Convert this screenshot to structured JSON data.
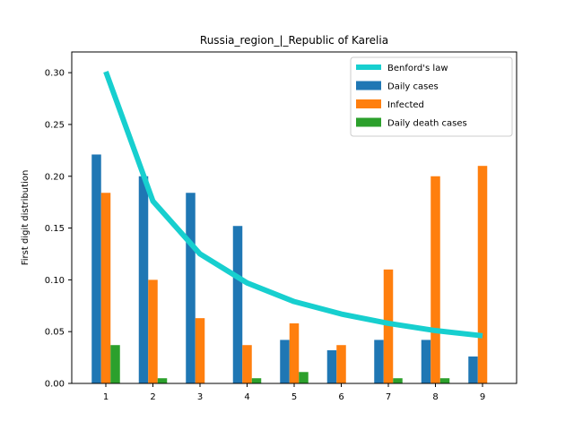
{
  "chart_data": {
    "type": "bar",
    "title": "Russia_region_|_Republic of Karelia",
    "xlabel": "",
    "ylabel": "First digit distribution",
    "ylim": [
      0,
      0.32
    ],
    "x_categories": [
      "1",
      "2",
      "3",
      "4",
      "5",
      "6",
      "7",
      "8",
      "9"
    ],
    "y_ticks": [
      "0.00",
      "0.05",
      "0.10",
      "0.15",
      "0.20",
      "0.25",
      "0.30"
    ],
    "legend_position": "upper right",
    "line_series": {
      "name": "Benford's law",
      "color": "#17cfcf",
      "values": [
        0.301,
        0.176,
        0.125,
        0.097,
        0.079,
        0.067,
        0.058,
        0.051,
        0.046
      ]
    },
    "series": [
      {
        "name": "Daily cases",
        "color": "#1f77b4",
        "values": [
          0.221,
          0.2,
          0.184,
          0.152,
          0.042,
          0.032,
          0.042,
          0.042,
          0.026
        ]
      },
      {
        "name": "Infected",
        "color": "#ff7f0e",
        "values": [
          0.184,
          0.1,
          0.063,
          0.037,
          0.058,
          0.037,
          0.11,
          0.2,
          0.21
        ]
      },
      {
        "name": "Daily death cases",
        "color": "#2ca02c",
        "values": [
          0.037,
          0.005,
          0,
          0.005,
          0.011,
          0,
          0.005,
          0.005,
          0
        ]
      }
    ]
  }
}
